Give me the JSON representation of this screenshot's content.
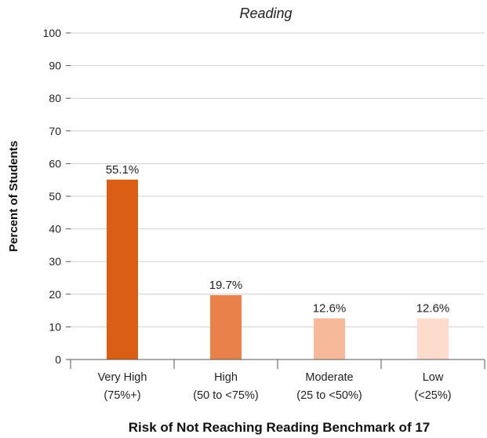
{
  "chart_data": {
    "type": "bar",
    "title": "Reading",
    "xlabel": "Risk of Not Reaching Reading Benchmark of 17",
    "ylabel": "Percent of Students",
    "ylim": [
      0,
      100
    ],
    "yticks": [
      "0",
      "10",
      "20",
      "30",
      "40",
      "50",
      "60",
      "70",
      "80",
      "90",
      "100"
    ],
    "grid": true,
    "categories": [
      {
        "line1": "Very High",
        "line2": "(75%+)"
      },
      {
        "line1": "High",
        "line2": "(50 to <75%)"
      },
      {
        "line1": "Moderate",
        "line2": "(25 to <50%)"
      },
      {
        "line1": "Low",
        "line2": "(<25%)"
      }
    ],
    "values": [
      55.1,
      19.7,
      12.6,
      12.6
    ],
    "data_labels": [
      "55.1%",
      "19.7%",
      "12.6%",
      "12.6%"
    ],
    "colors": [
      "#d95f14",
      "#e8814a",
      "#f6b99a",
      "#fcdccd"
    ]
  }
}
